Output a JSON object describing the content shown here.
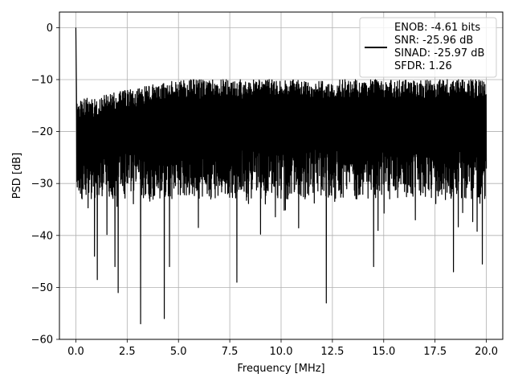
{
  "chart_data": {
    "type": "line",
    "xlabel": "Frequency [MHz]",
    "ylabel": "PSD [dB]",
    "xlim": [
      -0.8,
      20.8
    ],
    "ylim": [
      -60,
      3
    ],
    "x_ticks": [
      0.0,
      2.5,
      5.0,
      7.5,
      10.0,
      12.5,
      15.0,
      17.5,
      20.0
    ],
    "x_tick_labels": [
      "0.0",
      "2.5",
      "5.0",
      "7.5",
      "10.0",
      "12.5",
      "15.0",
      "17.5",
      "20.0"
    ],
    "y_ticks": [
      0,
      -10,
      -20,
      -30,
      -40,
      -50,
      -60
    ],
    "y_tick_labels": [
      "0",
      "−10",
      "−20",
      "−30",
      "−40",
      "−50",
      "−60"
    ],
    "grid": true,
    "legend_position": "top-right",
    "series": [
      {
        "name": "ENOB: -4.61 bits\nSNR: -25.96 dB\nSINAD: -25.97 dB\nSFDR: 1.26",
        "color": "#000000",
        "x_start": 0.0,
        "x_end": 20.0,
        "points": 2048,
        "peak": {
          "x": 0.0,
          "y": 0.0
        },
        "envelope_top": [
          -10,
          -14
        ],
        "typical_range": [
          -33,
          -12
        ],
        "deep_notches": [
          {
            "x": 0.9,
            "y": -44
          },
          {
            "x": 1.05,
            "y": -48.5
          },
          {
            "x": 1.9,
            "y": -46
          },
          {
            "x": 2.05,
            "y": -51
          },
          {
            "x": 3.15,
            "y": -57
          },
          {
            "x": 4.3,
            "y": -56
          },
          {
            "x": 4.55,
            "y": -46
          },
          {
            "x": 7.85,
            "y": -49
          },
          {
            "x": 12.2,
            "y": -53
          },
          {
            "x": 14.5,
            "y": -46
          },
          {
            "x": 18.4,
            "y": -47
          },
          {
            "x": 19.8,
            "y": -45.5
          }
        ]
      }
    ]
  }
}
